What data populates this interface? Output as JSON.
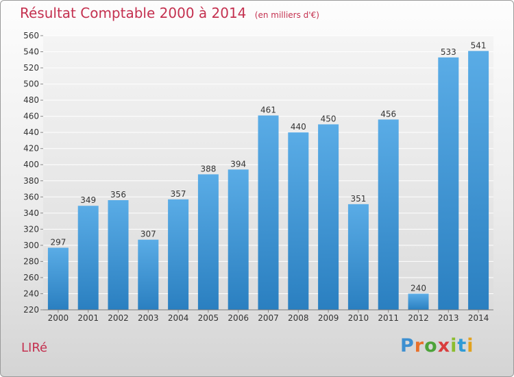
{
  "header": {
    "title": "Résultat Comptable 2000 à 2014",
    "unit": "(en milliers d'€)"
  },
  "footer": {
    "commune": "LIRé",
    "brand_letters": [
      "P",
      "r",
      "o",
      "x",
      "i",
      "t",
      "i"
    ],
    "brand_colors": [
      "#3d8fd0",
      "#e8702a",
      "#4da33a",
      "#d93d3d",
      "#8bbd2f",
      "#2f9bd6",
      "#e2a21e"
    ]
  },
  "colors": {
    "title": "#c4304f",
    "bar_top": "#5aace6",
    "bar_bottom": "#2a7fc0",
    "grid": "#ffffff",
    "axis_text": "#333333"
  },
  "chart_data": {
    "type": "bar",
    "title": "Résultat Comptable 2000 à 2014",
    "xlabel": "",
    "ylabel": "",
    "ylim": [
      220,
      560
    ],
    "yticks": [
      220,
      240,
      260,
      280,
      300,
      320,
      340,
      360,
      380,
      400,
      420,
      440,
      460,
      480,
      500,
      520,
      540,
      560
    ],
    "grid": true,
    "categories": [
      "2000",
      "2001",
      "2002",
      "2003",
      "2004",
      "2005",
      "2006",
      "2007",
      "2008",
      "2009",
      "2010",
      "2011",
      "2012",
      "2013",
      "2014"
    ],
    "values": [
      297,
      349,
      356,
      307,
      357,
      388,
      394,
      461,
      440,
      450,
      351,
      456,
      240,
      533,
      541
    ],
    "labels": [
      "297",
      "349",
      "356",
      "307",
      "357",
      "388",
      "394",
      "461",
      "440",
      "450",
      "351",
      "456",
      "240",
      "533",
      "541"
    ]
  }
}
